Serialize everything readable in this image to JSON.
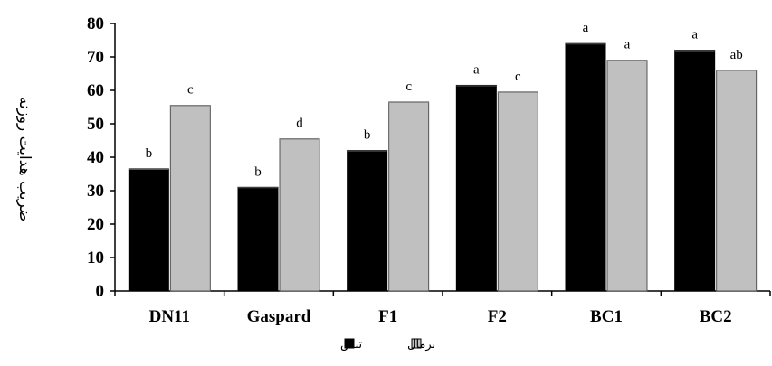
{
  "chart_data": {
    "type": "bar",
    "categories": [
      "DN11",
      "Gaspard",
      "F1",
      "F2",
      "BC1",
      "BC2"
    ],
    "series": [
      {
        "name": "تنش",
        "color": "#000000",
        "values": [
          36.5,
          31,
          42,
          61.5,
          74,
          72
        ],
        "labels": [
          "b",
          "b",
          "b",
          "a",
          "a",
          "a"
        ]
      },
      {
        "name": "نرمال",
        "color": "#c0c0c0",
        "values": [
          55.5,
          45.5,
          56.5,
          59.5,
          69,
          66
        ],
        "labels": [
          "c",
          "d",
          "c",
          "c",
          "a",
          "ab"
        ]
      }
    ],
    "ylabel": "ضریب هدایت روزنه",
    "xlabel": "",
    "ylim": [
      0,
      80
    ],
    "yticks": [
      0,
      10,
      20,
      30,
      40,
      50,
      60,
      70,
      80
    ],
    "grid": false,
    "legend_position": "bottom-center"
  }
}
